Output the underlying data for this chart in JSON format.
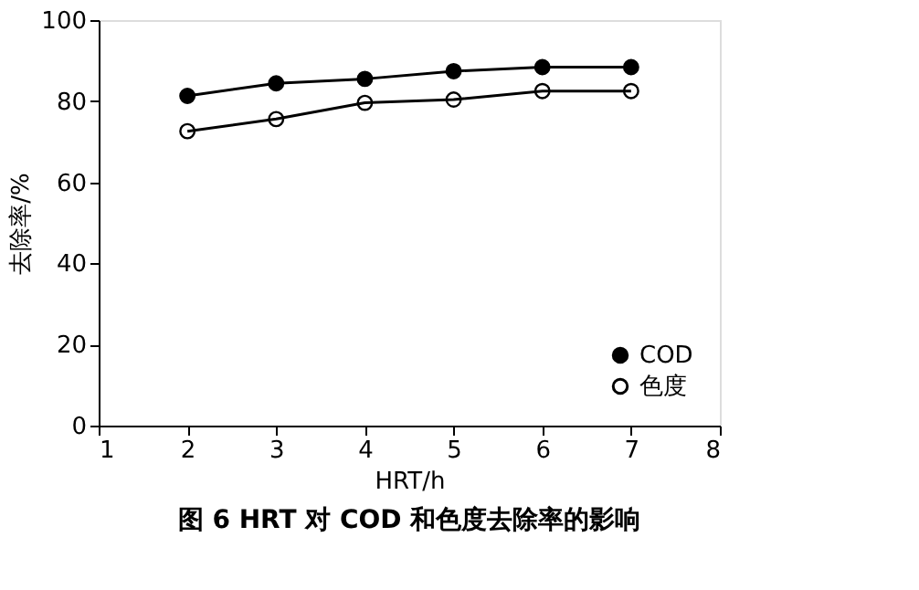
{
  "chart_data": {
    "type": "line",
    "title": "图 6    HRT 对 COD 和色度去除率的影响",
    "xlabel": "HRT/h",
    "ylabel": "去除率/%",
    "x": [
      2,
      3,
      4,
      5,
      6,
      7
    ],
    "series": [
      {
        "name": "COD",
        "color": "#000000",
        "values": [
          81.3,
          84.4,
          85.5,
          87.4,
          88.4,
          88.4
        ]
      },
      {
        "name": "色度",
        "color": "#000000",
        "values": [
          72.6,
          75.6,
          79.6,
          80.4,
          82.5,
          82.5
        ]
      }
    ],
    "xlim": [
      1,
      8
    ],
    "xticks": [
      1,
      2,
      3,
      4,
      5,
      6,
      7,
      8
    ],
    "ylim": [
      0,
      100
    ],
    "yticks": [
      0,
      20,
      40,
      60,
      80,
      100
    ],
    "grid": false,
    "legend": "bottom right",
    "marker": "circle",
    "line_style": "solid"
  }
}
